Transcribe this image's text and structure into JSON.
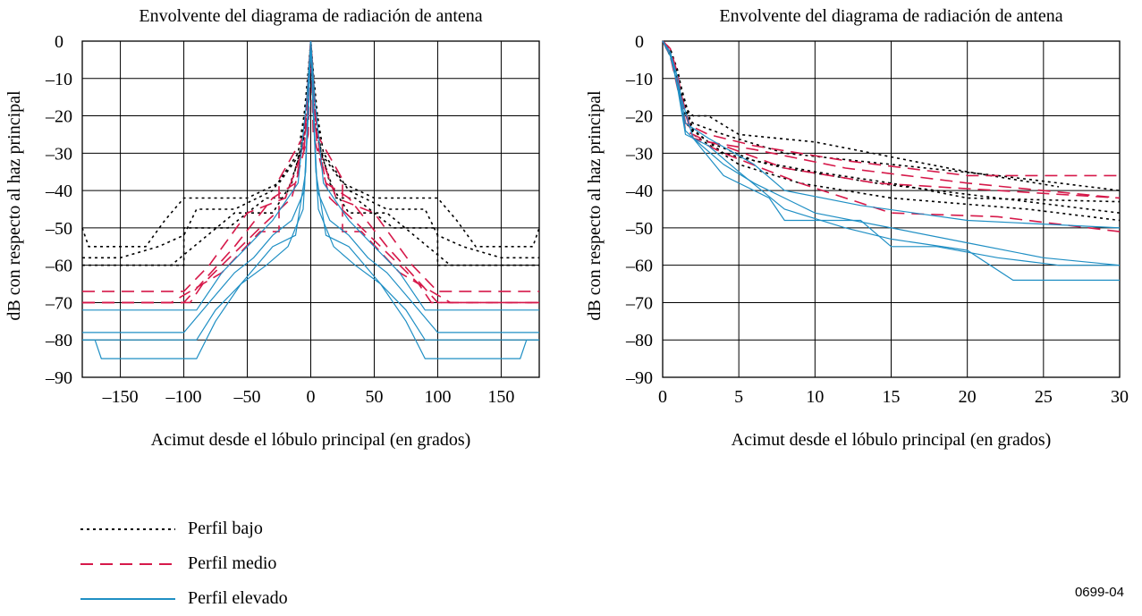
{
  "chart_data": [
    {
      "type": "line",
      "title": "Envolvente del diagrama de radiación de antena",
      "xlabel": "Acimut desde el lóbulo principal (en grados)",
      "ylabel": "dB con respecto al haz principal",
      "xlim": [
        -180,
        180
      ],
      "ylim": [
        -90,
        0
      ],
      "x_ticks": [
        -150,
        -100,
        -50,
        0,
        50,
        100,
        150
      ],
      "x_tick_labels": [
        "–150",
        "–100",
        "–50",
        "0",
        "50",
        "100",
        "150"
      ],
      "y_ticks": [
        0,
        -10,
        -20,
        -30,
        -40,
        -50,
        -60,
        -70,
        -80,
        -90
      ],
      "y_tick_labels": [
        "0",
        "–10",
        "–20",
        "–30",
        "–40",
        "–50",
        "–60",
        "–70",
        "–80",
        "–90"
      ],
      "x_grid": [
        -150,
        -100,
        -50,
        0,
        50,
        100,
        150
      ],
      "grid": true,
      "series": [
        {
          "profile": "bajo",
          "x": [
            -180,
            -100,
            -100,
            -65,
            -35,
            -20,
            -8,
            -2,
            0,
            2,
            8,
            20,
            35,
            65,
            100,
            100,
            180
          ],
          "y": [
            -60,
            -60,
            -50,
            -50,
            -42,
            -42,
            -30,
            -8,
            0,
            -8,
            -30,
            -42,
            -42,
            -50,
            -50,
            -60,
            -60
          ]
        },
        {
          "profile": "bajo",
          "x": [
            -180,
            -150,
            -120,
            -100,
            -90,
            -60,
            -30,
            -10,
            -3,
            0,
            3,
            10,
            30,
            60,
            90,
            100,
            120,
            150,
            180
          ],
          "y": [
            -58,
            -58,
            -55,
            -52,
            -45,
            -45,
            -40,
            -30,
            -15,
            0,
            -15,
            -30,
            -40,
            -45,
            -45,
            -52,
            -55,
            -58,
            -58
          ]
        },
        {
          "profile": "bajo",
          "x": [
            -180,
            -175,
            -130,
            -115,
            -100,
            -50,
            -25,
            -8,
            -2,
            0,
            2,
            8,
            25,
            50,
            100,
            115,
            130,
            175,
            180
          ],
          "y": [
            -50,
            -55,
            -55,
            -48,
            -42,
            -42,
            -38,
            -30,
            -20,
            0,
            -20,
            -30,
            -38,
            -42,
            -42,
            -48,
            -55,
            -55,
            -50
          ]
        },
        {
          "profile": "bajo",
          "x": [
            -180,
            -110,
            -60,
            -30,
            -15,
            -5,
            0,
            5,
            15,
            30,
            60,
            110,
            180
          ],
          "y": [
            -60,
            -60,
            -46,
            -46,
            -38,
            -25,
            0,
            -25,
            -38,
            -46,
            -46,
            -60,
            -60
          ]
        },
        {
          "profile": "medio",
          "x": [
            -180,
            -100,
            -60,
            -30,
            -12,
            -3,
            0,
            3,
            12,
            30,
            60,
            100,
            180
          ],
          "y": [
            -70,
            -70,
            -55,
            -42,
            -38,
            -22,
            0,
            -22,
            -38,
            -42,
            -55,
            -70,
            -70
          ]
        },
        {
          "profile": "medio",
          "x": [
            -180,
            -100,
            -80,
            -50,
            -20,
            -5,
            0,
            5,
            20,
            50,
            80,
            100,
            180
          ],
          "y": [
            -67,
            -67,
            -60,
            -46,
            -42,
            -28,
            0,
            -28,
            -42,
            -46,
            -60,
            -67,
            -67
          ]
        },
        {
          "profile": "medio",
          "x": [
            -180,
            -110,
            -70,
            -40,
            -25,
            -25,
            -5,
            0,
            5,
            25,
            25,
            40,
            70,
            110,
            180
          ],
          "y": [
            -70,
            -70,
            -62,
            -51,
            -51,
            -37,
            -25,
            0,
            -25,
            -37,
            -51,
            -51,
            -62,
            -70,
            -70
          ]
        },
        {
          "profile": "medio",
          "x": [
            -180,
            -95,
            -85,
            -40,
            -15,
            -2,
            0,
            2,
            15,
            40,
            85,
            95,
            180
          ],
          "y": [
            -70,
            -70,
            -65,
            -50,
            -42,
            -25,
            0,
            -25,
            -42,
            -50,
            -65,
            -70,
            -70
          ]
        },
        {
          "profile": "elevado",
          "x": [
            -180,
            -90,
            -70,
            -50,
            -30,
            -10,
            -3,
            0,
            3,
            10,
            30,
            50,
            70,
            90,
            180
          ],
          "y": [
            -72,
            -72,
            -62,
            -55,
            -48,
            -38,
            -15,
            0,
            -15,
            -38,
            -48,
            -55,
            -62,
            -72,
            -72
          ]
        },
        {
          "profile": "elevado",
          "x": [
            -180,
            -90,
            -75,
            -55,
            -35,
            -18,
            -6,
            -2,
            0,
            2,
            6,
            18,
            35,
            55,
            75,
            90,
            180
          ],
          "y": [
            -80,
            -80,
            -72,
            -65,
            -60,
            -55,
            -45,
            -20,
            0,
            -20,
            -45,
            -55,
            -60,
            -65,
            -72,
            -80,
            -80
          ]
        },
        {
          "profile": "elevado",
          "x": [
            -180,
            -170,
            -165,
            -90,
            -75,
            -55,
            -30,
            -12,
            -4,
            0,
            4,
            12,
            30,
            55,
            75,
            90,
            165,
            170,
            180
          ],
          "y": [
            -80,
            -80,
            -85,
            -85,
            -75,
            -65,
            -55,
            -52,
            -35,
            0,
            -35,
            -52,
            -55,
            -65,
            -75,
            -85,
            -85,
            -80,
            -80
          ]
        },
        {
          "profile": "elevado",
          "x": [
            -180,
            -100,
            -80,
            -60,
            -45,
            -30,
            -15,
            -5,
            0,
            5,
            15,
            30,
            45,
            60,
            80,
            100,
            180
          ],
          "y": [
            -78,
            -78,
            -70,
            -62,
            -58,
            -52,
            -48,
            -40,
            0,
            -40,
            -48,
            -52,
            -58,
            -62,
            -70,
            -78,
            -78
          ]
        }
      ]
    },
    {
      "type": "line",
      "title": "Envolvente del diagrama de radiación de antena",
      "xlabel": "Acimut desde el lóbulo principal (en grados)",
      "ylabel": "dB con respecto al haz principal",
      "xlim": [
        0,
        30
      ],
      "ylim": [
        -90,
        0
      ],
      "x_ticks": [
        0,
        5,
        10,
        15,
        20,
        25,
        30
      ],
      "x_tick_labels": [
        "0",
        "5",
        "10",
        "15",
        "20",
        "25",
        "30"
      ],
      "y_ticks": [
        0,
        -10,
        -20,
        -30,
        -40,
        -50,
        -60,
        -70,
        -80,
        -90
      ],
      "y_tick_labels": [
        "0",
        "–10",
        "–20",
        "–30",
        "–40",
        "–50",
        "–60",
        "–70",
        "–80",
        "–90"
      ],
      "x_grid": [
        5,
        10,
        15,
        20,
        25
      ],
      "grid": true,
      "series": [
        {
          "profile": "bajo",
          "x": [
            0,
            0.5,
            1,
            1.5,
            2,
            3,
            5,
            10,
            15,
            20,
            26
          ],
          "y": [
            0,
            -2,
            -8,
            -18,
            -20,
            -20,
            -25,
            -27,
            -31,
            -35,
            -39
          ]
        },
        {
          "profile": "bajo",
          "x": [
            0,
            0.5,
            1,
            1.5,
            2,
            4,
            8,
            15,
            22,
            30
          ],
          "y": [
            0,
            -3,
            -10,
            -20,
            -22,
            -25,
            -30,
            -33,
            -36,
            -40
          ]
        },
        {
          "profile": "bajo",
          "x": [
            0,
            0.5,
            1,
            1.5,
            3,
            6,
            10,
            15,
            20,
            30
          ],
          "y": [
            0,
            -4,
            -12,
            -22,
            -27,
            -32,
            -35,
            -38,
            -42,
            -43
          ]
        },
        {
          "profile": "bajo",
          "x": [
            0,
            0.5,
            1,
            2,
            4,
            8,
            14,
            22,
            30
          ],
          "y": [
            0,
            -2,
            -9,
            -24,
            -30,
            -34,
            -38,
            -42,
            -46
          ]
        },
        {
          "profile": "bajo",
          "x": [
            0,
            0.5,
            1,
            2,
            5,
            9,
            15,
            24,
            30
          ],
          "y": [
            0,
            -3,
            -11,
            -25,
            -33,
            -38,
            -42,
            -45,
            -48
          ]
        },
        {
          "profile": "medio",
          "x": [
            0,
            0.5,
            1,
            1.5,
            3,
            6,
            12,
            20,
            30
          ],
          "y": [
            0,
            -2,
            -9,
            -22,
            -25,
            -28,
            -32,
            -36,
            -36
          ]
        },
        {
          "profile": "medio",
          "x": [
            0,
            0.5,
            1,
            1.5,
            3,
            6,
            12,
            20,
            30
          ],
          "y": [
            0,
            -3,
            -10,
            -24,
            -27,
            -29,
            -34,
            -38,
            -42
          ]
        },
        {
          "profile": "medio",
          "x": [
            0,
            0.5,
            1,
            2,
            4,
            8,
            14,
            22,
            30
          ],
          "y": [
            0,
            -3,
            -11,
            -26,
            -28,
            -34,
            -38,
            -40,
            -42
          ]
        },
        {
          "profile": "medio",
          "x": [
            0,
            0.5,
            1,
            2,
            4,
            9,
            15,
            22,
            30
          ],
          "y": [
            0,
            -4,
            -13,
            -26,
            -30,
            -38,
            -46,
            -47,
            -51
          ]
        },
        {
          "profile": "elevado",
          "x": [
            0,
            0.5,
            1,
            1.5,
            3,
            6,
            8,
            13,
            20,
            30
          ],
          "y": [
            0,
            -3,
            -10,
            -22,
            -26,
            -33,
            -40,
            -44,
            -48,
            -50
          ]
        },
        {
          "profile": "elevado",
          "x": [
            0,
            0.5,
            1,
            1.5,
            2,
            4,
            7,
            8,
            13,
            15,
            18,
            22,
            26,
            30
          ],
          "y": [
            0,
            -3,
            -12,
            -24,
            -26,
            -36,
            -42,
            -48,
            -48,
            -55,
            -55,
            -58,
            -60,
            -60
          ]
        },
        {
          "profile": "elevado",
          "x": [
            0,
            0.5,
            1,
            1.5,
            3,
            5,
            8,
            12,
            15,
            20,
            23,
            30
          ],
          "y": [
            0,
            -3,
            -13,
            -25,
            -28,
            -35,
            -45,
            -50,
            -53,
            -56,
            -64,
            -64
          ]
        },
        {
          "profile": "elevado",
          "x": [
            0,
            0.5,
            1,
            2,
            4,
            6,
            10,
            15,
            20,
            25,
            30
          ],
          "y": [
            0,
            -4,
            -12,
            -26,
            -33,
            -38,
            -46,
            -50,
            -54,
            -58,
            -60
          ]
        }
      ]
    }
  ],
  "legend": {
    "items": [
      {
        "id": "bajo",
        "label": "Perfil bajo",
        "color": "#000000",
        "dash": "3,4"
      },
      {
        "id": "medio",
        "label": "Perfil medio",
        "color": "#d6194a",
        "dash": "14,8"
      },
      {
        "id": "elevado",
        "label": "Perfil elevado",
        "color": "#1f8fc4",
        "dash": ""
      }
    ]
  },
  "figure_id": "0699-04"
}
